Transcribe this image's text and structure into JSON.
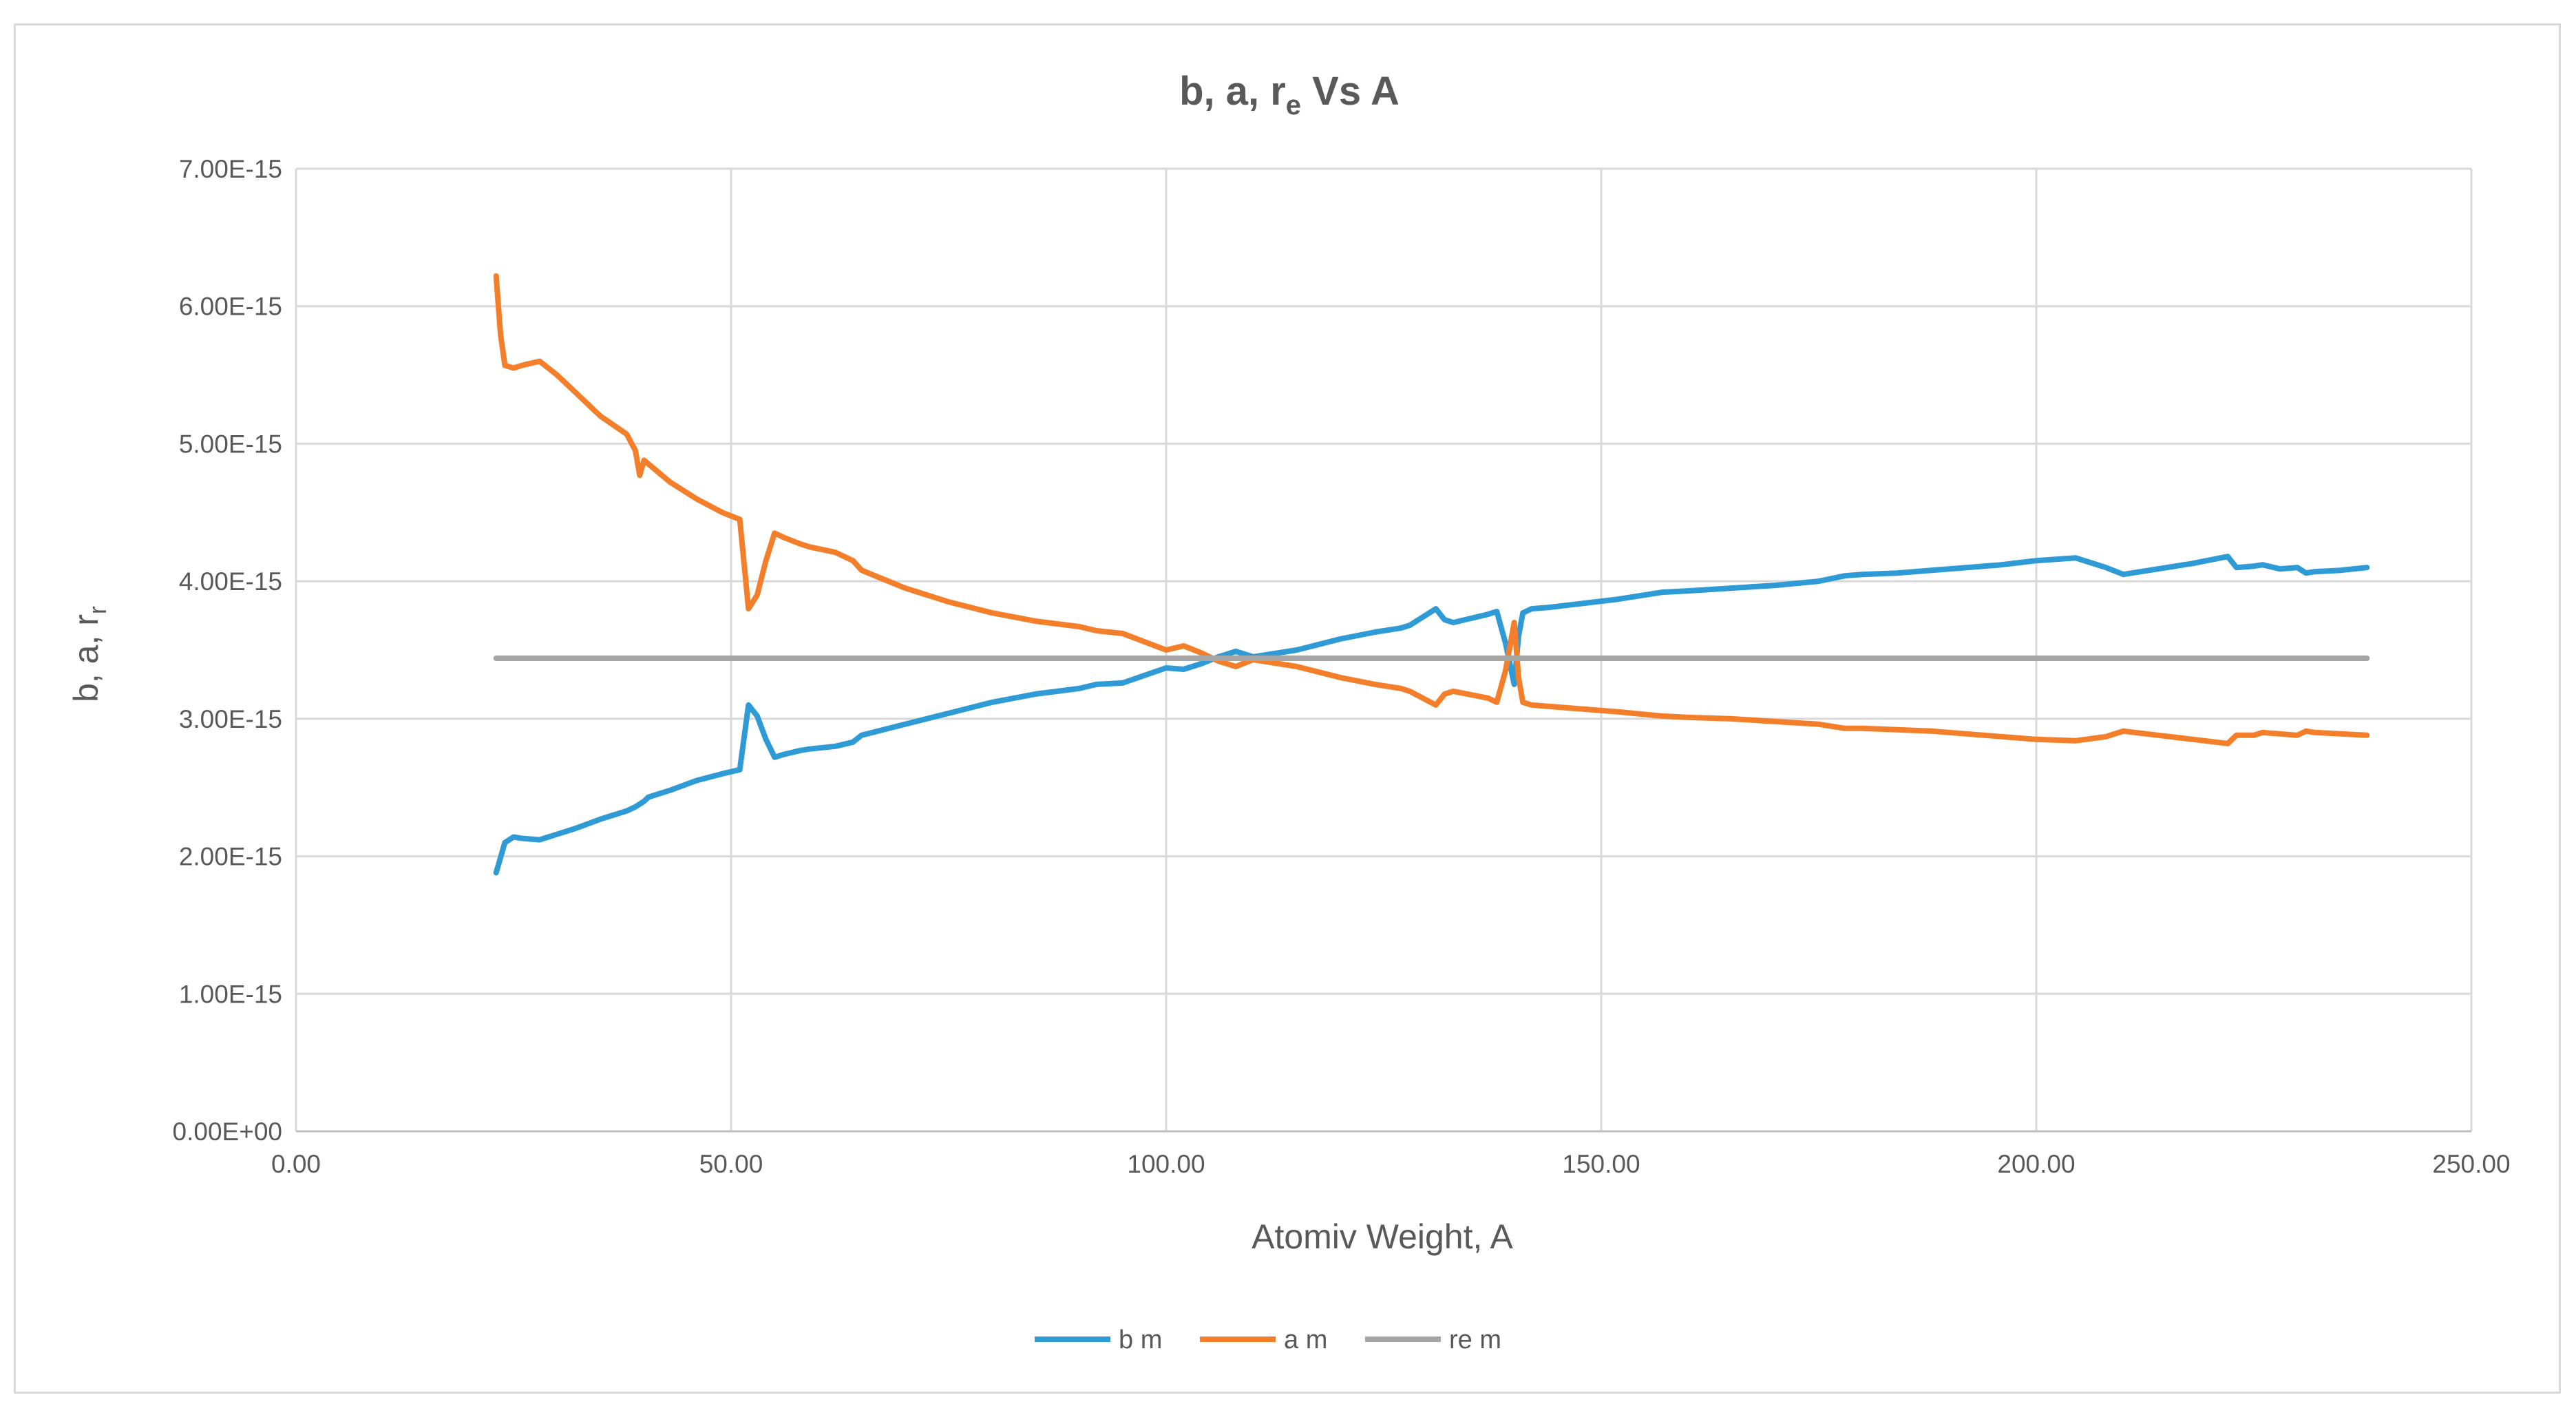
{
  "chart_data": {
    "type": "line",
    "title": "b, a, re Vs A",
    "title_parts": {
      "main": "b, a, r",
      "sub": "e",
      "tail": " Vs A"
    },
    "xlabel": "Atomiv Weight, A",
    "ylabel": "b, a, rr",
    "ylabel_parts": {
      "main": "b, a, r",
      "sub": "r"
    },
    "xlim": [
      0,
      250
    ],
    "ylim": [
      0,
      7e-15
    ],
    "x_ticks": [
      {
        "value": 0,
        "label": "0.00"
      },
      {
        "value": 50,
        "label": "50.00"
      },
      {
        "value": 100,
        "label": "100.00"
      },
      {
        "value": 150,
        "label": "150.00"
      },
      {
        "value": 200,
        "label": "200.00"
      },
      {
        "value": 250,
        "label": "250.00"
      }
    ],
    "y_ticks": [
      {
        "value": 0,
        "label": "0.00E+00"
      },
      {
        "value": 1e-15,
        "label": "1.00E-15"
      },
      {
        "value": 2e-15,
        "label": "2.00E-15"
      },
      {
        "value": 3e-15,
        "label": "3.00E-15"
      },
      {
        "value": 4e-15,
        "label": "4.00E-15"
      },
      {
        "value": 5e-15,
        "label": "5.00E-15"
      },
      {
        "value": 6e-15,
        "label": "6.00E-15"
      },
      {
        "value": 7e-15,
        "label": "7.00E-15"
      }
    ],
    "grid": true,
    "legend_position": "bottom",
    "series": [
      {
        "name": "b m",
        "color": "#2e9bd6",
        "x": [
          23,
          24,
          25,
          26,
          28,
          30,
          32,
          35,
          38,
          39,
          40,
          40.5,
          43,
          46,
          49,
          51,
          52,
          53,
          54,
          55,
          56,
          58,
          59,
          62,
          64,
          65,
          70,
          75,
          80,
          85,
          90,
          92,
          95,
          100,
          102,
          104,
          106,
          108,
          110,
          115,
          120,
          124,
          127,
          128,
          131,
          132,
          133,
          137,
          138,
          139,
          140,
          140.5,
          141,
          142,
          144,
          148,
          152,
          157,
          160,
          165,
          170,
          175,
          178,
          180,
          184,
          188,
          192,
          196,
          200,
          204.5,
          208,
          210,
          214,
          218,
          222,
          223,
          225,
          226,
          228,
          230,
          231,
          232,
          235,
          238
        ],
        "y": [
          1.88e-15,
          2.1e-15,
          2.14e-15,
          2.13e-15,
          2.12e-15,
          2.16e-15,
          2.2e-15,
          2.27e-15,
          2.33e-15,
          2.36e-15,
          2.4e-15,
          2.43e-15,
          2.48e-15,
          2.55e-15,
          2.6e-15,
          2.63e-15,
          3.1e-15,
          3.02e-15,
          2.85e-15,
          2.72e-15,
          2.74e-15,
          2.77e-15,
          2.78e-15,
          2.8e-15,
          2.83e-15,
          2.88e-15,
          2.96e-15,
          3.04e-15,
          3.12e-15,
          3.18e-15,
          3.22e-15,
          3.25e-15,
          3.26e-15,
          3.37e-15,
          3.36e-15,
          3.4e-15,
          3.45e-15,
          3.49e-15,
          3.45e-15,
          3.5e-15,
          3.58e-15,
          3.63e-15,
          3.66e-15,
          3.68e-15,
          3.8e-15,
          3.72e-15,
          3.7e-15,
          3.76e-15,
          3.78e-15,
          3.55e-15,
          3.25e-15,
          3.6e-15,
          3.77e-15,
          3.8e-15,
          3.81e-15,
          3.84e-15,
          3.87e-15,
          3.92e-15,
          3.93e-15,
          3.95e-15,
          3.97e-15,
          4e-15,
          4.04e-15,
          4.05e-15,
          4.06e-15,
          4.08e-15,
          4.1e-15,
          4.12e-15,
          4.15e-15,
          4.17e-15,
          4.1e-15,
          4.05e-15,
          4.09e-15,
          4.13e-15,
          4.18e-15,
          4.1e-15,
          4.11e-15,
          4.12e-15,
          4.09e-15,
          4.1e-15,
          4.06e-15,
          4.07e-15,
          4.08e-15,
          4.1e-15
        ]
      },
      {
        "name": "a m",
        "color": "#f47f2a",
        "x": [
          23,
          23.5,
          24,
          25,
          26,
          28,
          30,
          32,
          35,
          38,
          39,
          39.5,
          40,
          43,
          46,
          49,
          51,
          52,
          53,
          54,
          55,
          56,
          58,
          59,
          62,
          64,
          65,
          70,
          75,
          80,
          85,
          90,
          92,
          95,
          100,
          102,
          104,
          106,
          108,
          110,
          115,
          120,
          124,
          127,
          128,
          131,
          132,
          133,
          137,
          138,
          139,
          140,
          140.5,
          141,
          142,
          144,
          148,
          152,
          157,
          160,
          165,
          170,
          175,
          178,
          180,
          184,
          188,
          192,
          196,
          200,
          204.5,
          208,
          210,
          214,
          218,
          222,
          223,
          225,
          226,
          228,
          230,
          231,
          232,
          235,
          238
        ],
        "y": [
          6.22e-15,
          5.8e-15,
          5.57e-15,
          5.55e-15,
          5.57e-15,
          5.6e-15,
          5.5e-15,
          5.38e-15,
          5.2e-15,
          5.07e-15,
          4.95e-15,
          4.77e-15,
          4.88e-15,
          4.72e-15,
          4.6e-15,
          4.5e-15,
          4.45e-15,
          3.8e-15,
          3.9e-15,
          4.15e-15,
          4.35e-15,
          4.32e-15,
          4.27e-15,
          4.25e-15,
          4.21e-15,
          4.15e-15,
          4.08e-15,
          3.95e-15,
          3.85e-15,
          3.77e-15,
          3.71e-15,
          3.67e-15,
          3.64e-15,
          3.62e-15,
          3.5e-15,
          3.53e-15,
          3.48e-15,
          3.42e-15,
          3.38e-15,
          3.43e-15,
          3.38e-15,
          3.3e-15,
          3.25e-15,
          3.22e-15,
          3.2e-15,
          3.1e-15,
          3.18e-15,
          3.2e-15,
          3.15e-15,
          3.12e-15,
          3.35e-15,
          3.7e-15,
          3.3e-15,
          3.12e-15,
          3.1e-15,
          3.09e-15,
          3.07e-15,
          3.05e-15,
          3.02e-15,
          3.01e-15,
          3e-15,
          2.98e-15,
          2.96e-15,
          2.93e-15,
          2.93e-15,
          2.92e-15,
          2.91e-15,
          2.89e-15,
          2.87e-15,
          2.85e-15,
          2.84e-15,
          2.87e-15,
          2.91e-15,
          2.88e-15,
          2.85e-15,
          2.82e-15,
          2.88e-15,
          2.88e-15,
          2.9e-15,
          2.89e-15,
          2.88e-15,
          2.91e-15,
          2.9e-15,
          2.89e-15,
          2.88e-15
        ]
      },
      {
        "name": "re m",
        "color": "#a5a5a5",
        "x": [
          23,
          238
        ],
        "y": [
          3.44e-15,
          3.44e-15
        ]
      }
    ]
  }
}
